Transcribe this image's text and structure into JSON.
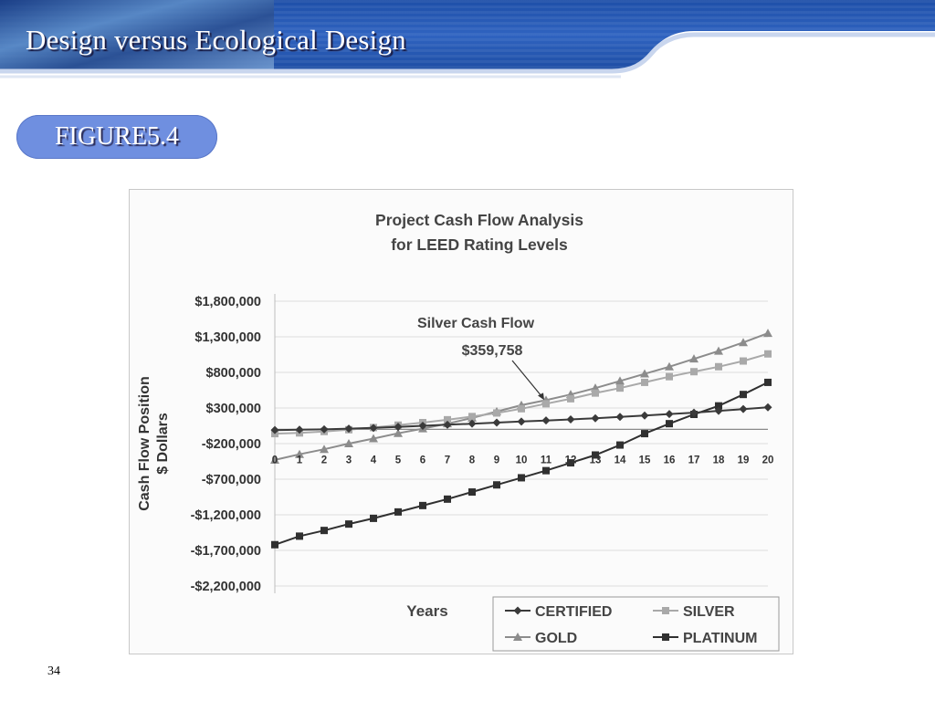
{
  "slide": {
    "title": "Design versus Ecological Design",
    "figure_label": "FIGURE5.4",
    "page_number": "34"
  },
  "colors": {
    "header_blue": "#2f5fb8",
    "pill_blue": "#6f8fe0",
    "certified": "#3a3a3a",
    "silver": "#a9a9a9",
    "gold": "#8c8c8c",
    "platinum": "#303030"
  },
  "chart_data": {
    "type": "line",
    "title": "Project Cash Flow Analysis for LEED Rating Levels",
    "title_lines": [
      "Project Cash Flow Analysis",
      "for LEED Rating Levels"
    ],
    "xlabel": "Years",
    "ylabel_lines": [
      "Cash Flow Position",
      "$ Dollars"
    ],
    "x": [
      0,
      1,
      2,
      3,
      4,
      5,
      6,
      7,
      8,
      9,
      10,
      11,
      12,
      13,
      14,
      15,
      16,
      17,
      18,
      19,
      20
    ],
    "x_tick_labels": [
      "0",
      "1",
      "2",
      "3",
      "4",
      "5",
      "6",
      "7",
      "8",
      "9",
      "10",
      "11",
      "12",
      "13",
      "14",
      "15",
      "16",
      "17",
      "18",
      "19",
      "20"
    ],
    "y_ticks": [
      1800000,
      1300000,
      800000,
      300000,
      -200000,
      -700000,
      -1200000,
      -1700000,
      -2200000
    ],
    "y_tick_labels": [
      "$1,800,000",
      "$1,300,000",
      "$800,000",
      "$300,000",
      "-$200,000",
      "-$700,000",
      "-$1,200,000",
      "-$1,700,000",
      "-$2,200,000"
    ],
    "ylim": [
      -2200000,
      1800000
    ],
    "grid": true,
    "legend_position": "bottom-right",
    "series": [
      {
        "name": "CERTIFIED",
        "marker": "diamond",
        "color": "#3a3a3a",
        "values": [
          -10000,
          -5000,
          0,
          10000,
          20000,
          35000,
          50000,
          65000,
          80000,
          95000,
          110000,
          125000,
          140000,
          155000,
          175000,
          195000,
          215000,
          235000,
          260000,
          285000,
          310000
        ]
      },
      {
        "name": "SILVER",
        "marker": "square",
        "color": "#a9a9a9",
        "values": [
          -60000,
          -50000,
          -30000,
          -5000,
          25000,
          60000,
          95000,
          135000,
          180000,
          230000,
          290000,
          359758,
          430000,
          510000,
          580000,
          660000,
          740000,
          810000,
          880000,
          960000,
          1060000
        ]
      },
      {
        "name": "GOLD",
        "marker": "triangle",
        "color": "#8c8c8c",
        "values": [
          -430000,
          -350000,
          -280000,
          -200000,
          -130000,
          -55000,
          10000,
          80000,
          160000,
          250000,
          340000,
          410000,
          490000,
          580000,
          680000,
          780000,
          880000,
          990000,
          1100000,
          1220000,
          1350000
        ]
      },
      {
        "name": "PLATINUM",
        "marker": "square",
        "color": "#303030",
        "values": [
          -1620000,
          -1500000,
          -1420000,
          -1330000,
          -1250000,
          -1160000,
          -1070000,
          -980000,
          -880000,
          -780000,
          -680000,
          -580000,
          -470000,
          -360000,
          -220000,
          -60000,
          80000,
          210000,
          330000,
          490000,
          660000
        ]
      }
    ],
    "annotation": {
      "text_lines": [
        "Silver Cash Flow",
        "$359,758"
      ],
      "x": 11,
      "y": 359758
    }
  }
}
